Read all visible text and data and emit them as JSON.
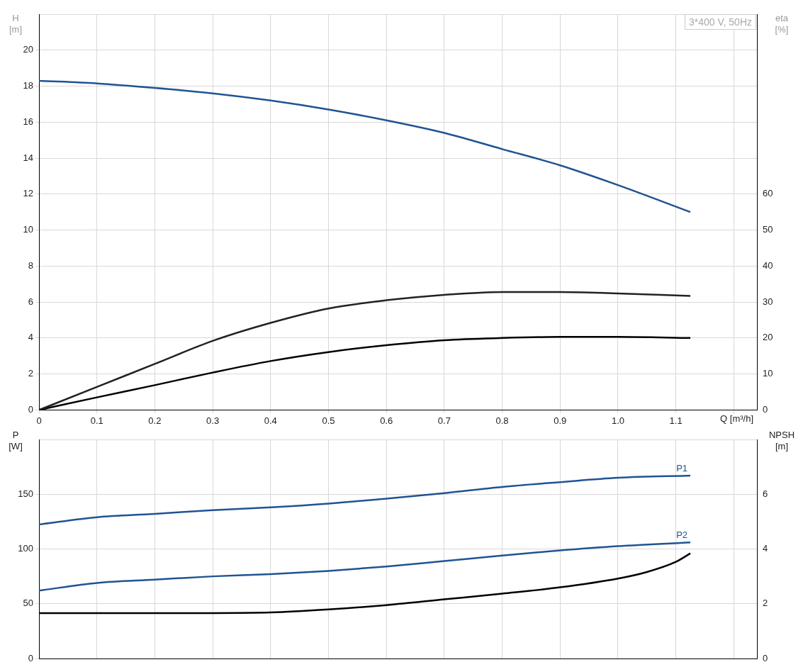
{
  "chart_data": [
    {
      "type": "line",
      "title": "3*400 V, 50Hz",
      "xlabel": "Q [m³/h]",
      "ylabel": "H [m]",
      "y2label": "eta [%]",
      "grid": true,
      "marker": "none",
      "xlim": [
        0,
        1.24
      ],
      "xticks": [
        0,
        0.1,
        0.2,
        0.3,
        0.4,
        0.5,
        0.6,
        0.7,
        0.8,
        0.9,
        {
          "value": 1.0,
          "label": "1.0"
        },
        1.1,
        {
          "value": 1.2,
          "label": null
        }
      ],
      "ylim": [
        0,
        22
      ],
      "yticks": [
        0,
        2,
        4,
        6,
        8,
        10,
        12,
        14,
        16,
        18,
        20
      ],
      "y2lim": [
        0,
        110
      ],
      "y2ticks": [
        0,
        10,
        20,
        30,
        40,
        50,
        60
      ],
      "x": [
        0,
        0.1,
        0.2,
        0.3,
        0.4,
        0.5,
        0.6,
        0.7,
        0.8,
        0.9,
        1.0,
        1.125
      ],
      "series": [
        {
          "color": "#1f5493",
          "values": [
            18.3,
            18.15,
            17.9,
            17.6,
            17.2,
            16.7,
            16.1,
            15.4,
            14.5,
            13.6,
            12.5,
            11.0
          ]
        },
        {
          "color": "#222222",
          "axis": "y2",
          "values": [
            0,
            6.4,
            12.8,
            19.2,
            24.2,
            28.2,
            30.5,
            32,
            32.8,
            32.8,
            32.4,
            31.7
          ]
        },
        {
          "color": "#000000",
          "axis": "y2",
          "values": [
            0,
            3.5,
            6.9,
            10.4,
            13.6,
            16.1,
            18,
            19.4,
            20,
            20.3,
            20.3,
            20
          ]
        }
      ]
    },
    {
      "type": "line",
      "ylabel": "P [W]",
      "y2label": "NPSH [m]",
      "grid": true,
      "marker": "none",
      "tick_labels": "y",
      "xlim": [
        0,
        1.24
      ],
      "xticks": [
        0,
        0.1,
        0.2,
        0.3,
        0.4,
        0.5,
        0.6,
        0.7,
        0.8,
        0.9,
        1,
        1.1,
        1.2
      ],
      "ylim": [
        0,
        200
      ],
      "yticks": [
        0,
        50,
        100,
        150
      ],
      "y2lim": [
        0,
        8
      ],
      "y2ticks": [
        0,
        2,
        4,
        6
      ],
      "series": [
        {
          "name": "P1",
          "color": "#1f5493",
          "x": [
            0,
            0.1,
            0.2,
            0.3,
            0.4,
            0.5,
            0.6,
            0.7,
            0.8,
            0.9,
            1.0,
            1.125
          ],
          "values": [
            122.4,
            129,
            132,
            135.5,
            138,
            141.4,
            146,
            151,
            156.6,
            161,
            165,
            167
          ]
        },
        {
          "name": "P2",
          "color": "#1f5493",
          "x": [
            0,
            0.1,
            0.2,
            0.3,
            0.4,
            0.5,
            0.6,
            0.7,
            0.8,
            0.9,
            1.0,
            1.125
          ],
          "values": [
            62,
            69,
            72,
            75,
            77,
            80,
            84,
            89,
            94,
            98.7,
            102.6,
            106
          ]
        },
        {
          "color": "#000000",
          "axis": "y2",
          "x": [
            0,
            0.3,
            0.4,
            0.5,
            0.6,
            0.7,
            0.8,
            0.9,
            1.0,
            1.05,
            1.1,
            1.125
          ],
          "values": [
            1.66,
            1.66,
            1.68,
            1.79,
            1.95,
            2.16,
            2.37,
            2.6,
            2.92,
            3.16,
            3.53,
            3.84
          ]
        }
      ]
    }
  ]
}
